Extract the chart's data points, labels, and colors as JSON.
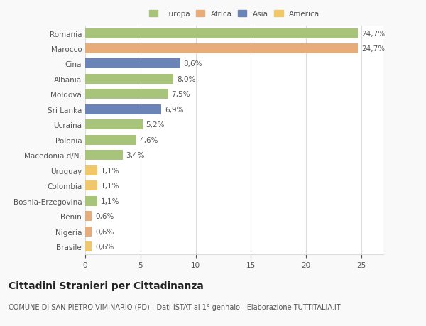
{
  "countries": [
    "Romania",
    "Marocco",
    "Cina",
    "Albania",
    "Moldova",
    "Sri Lanka",
    "Ucraina",
    "Polonia",
    "Macedonia d/N.",
    "Uruguay",
    "Colombia",
    "Bosnia-Erzegovina",
    "Benin",
    "Nigeria",
    "Brasile"
  ],
  "values": [
    24.7,
    24.7,
    8.6,
    8.0,
    7.5,
    6.9,
    5.2,
    4.6,
    3.4,
    1.1,
    1.1,
    1.1,
    0.6,
    0.6,
    0.6
  ],
  "labels": [
    "24,7%",
    "24,7%",
    "8,6%",
    "8,0%",
    "7,5%",
    "6,9%",
    "5,2%",
    "4,6%",
    "3,4%",
    "1,1%",
    "1,1%",
    "1,1%",
    "0,6%",
    "0,6%",
    "0,6%"
  ],
  "colors": [
    "#a8c47a",
    "#e8ab7a",
    "#6a84b8",
    "#a8c47a",
    "#a8c47a",
    "#6a84b8",
    "#a8c47a",
    "#a8c47a",
    "#a8c47a",
    "#f0c86a",
    "#f0c86a",
    "#a8c47a",
    "#e8ab7a",
    "#e8ab7a",
    "#f0c86a"
  ],
  "legend_labels": [
    "Europa",
    "Africa",
    "Asia",
    "America"
  ],
  "legend_colors": [
    "#a8c47a",
    "#e8ab7a",
    "#6a84b8",
    "#f0c86a"
  ],
  "title": "Cittadini Stranieri per Cittadinanza",
  "subtitle": "COMUNE DI SAN PIETRO VIMINARIO (PD) - Dati ISTAT al 1° gennaio - Elaborazione TUTTITALIA.IT",
  "xlim": [
    0,
    27
  ],
  "xticks": [
    0,
    5,
    10,
    15,
    20,
    25
  ],
  "background_color": "#f9f9f9",
  "bar_background": "#ffffff",
  "grid_color": "#dddddd",
  "text_color": "#555555",
  "label_fontsize": 7.5,
  "tick_fontsize": 7.5,
  "title_fontsize": 10,
  "subtitle_fontsize": 7
}
